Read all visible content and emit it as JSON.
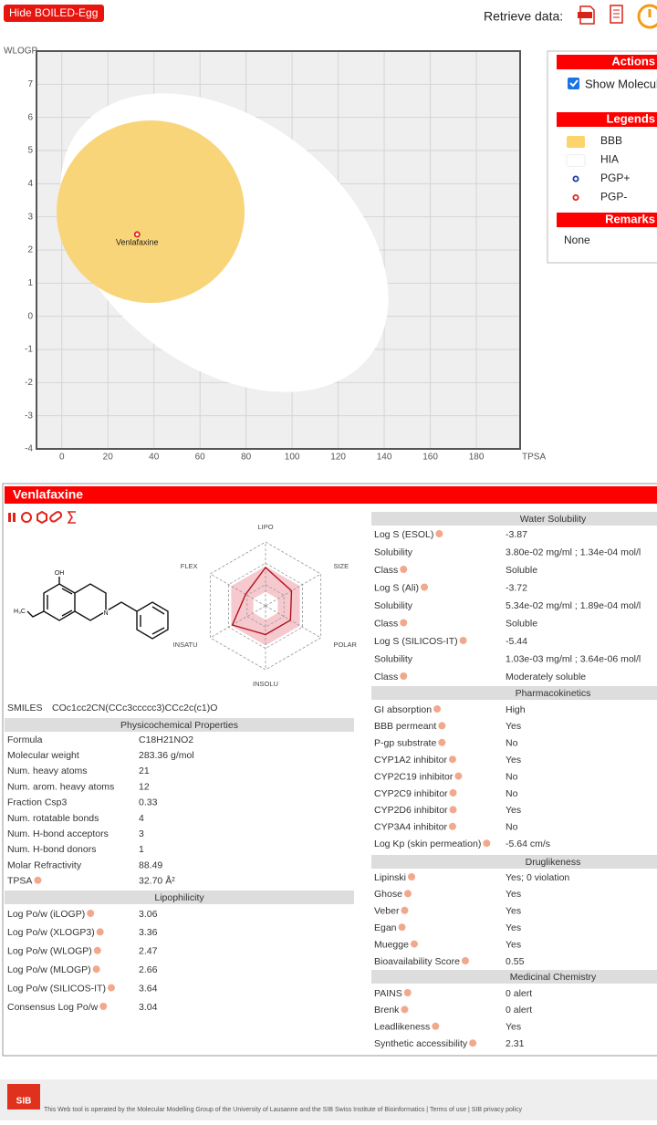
{
  "toolbar": {
    "hide_button": "Hide BOILED-Egg",
    "retrieve_label": "Retrieve data:"
  },
  "chart_data": [
    {
      "type": "scatter",
      "x_label": "TPSA",
      "y_label": "WLOGP",
      "xlim": [
        -11,
        199
      ],
      "ylim": [
        -4,
        8
      ],
      "xticks": [
        0,
        20,
        40,
        60,
        80,
        100,
        120,
        140,
        160,
        180
      ],
      "yticks": [
        -4,
        -3,
        -2,
        -1,
        0,
        1,
        2,
        3,
        4,
        5,
        6,
        7
      ],
      "grid": true,
      "series": [
        {
          "name": "Venlafaxine",
          "color": "#e0221b",
          "x": [
            32.7
          ],
          "values": [
            2.47
          ]
        }
      ]
    },
    {
      "type": "radar",
      "axes": [
        "LIPO",
        "SIZE",
        "POLAR",
        "INSOLU",
        "INSATU",
        "FLEX"
      ],
      "values": [
        0.6,
        0.47,
        0.45,
        0.45,
        0.6,
        0.36
      ],
      "ylim": [
        0,
        1
      ],
      "color": "#b0121b"
    }
  ],
  "side_panel": {
    "actions_title": "Actions",
    "show_names": "Show Molecule names",
    "legends_title": "Legends",
    "legend": [
      {
        "label": "BBB",
        "color": "#fbd46c"
      },
      {
        "label": "HIA",
        "color": "#ffffff"
      },
      {
        "label": "PGP+",
        "color": "#1a3fa0",
        "marker": "ring"
      },
      {
        "label": "PGP-",
        "color": "#e0221b",
        "marker": "ring"
      }
    ],
    "remarks_title": "Remarks",
    "remarks": "None"
  },
  "details": {
    "title": "Venlafaxine",
    "structure_labels": [
      "OH",
      "H₃C",
      "N"
    ],
    "smiles_label": "SMILES",
    "smiles": "COc1cc2CN(CCc3ccccc3)CCc2c(c1)O",
    "left_sections": [
      {
        "title": "Physicochemical Properties",
        "rows": [
          {
            "label": "Formula",
            "value": "C18H21NO2"
          },
          {
            "label": "Molecular weight",
            "value": "283.36 g/mol"
          },
          {
            "label": "Num. heavy atoms",
            "value": "21"
          },
          {
            "label": "Num. arom. heavy atoms",
            "value": "12"
          },
          {
            "label": "Fraction Csp3",
            "value": "0.33"
          },
          {
            "label": "Num. rotatable bonds",
            "value": "4"
          },
          {
            "label": "Num. H-bond acceptors",
            "value": "3"
          },
          {
            "label": "Num. H-bond donors",
            "value": "1"
          },
          {
            "label": "Molar Refractivity",
            "value": "88.49"
          },
          {
            "label": "TPSA",
            "value": "32.70 Å²",
            "help": true
          }
        ]
      },
      {
        "title": "Lipophilicity",
        "rows": [
          {
            "label": "Log Po/w (iLOGP)",
            "value": "3.06",
            "help": true
          },
          {
            "label": "Log Po/w (XLOGP3)",
            "value": "3.36",
            "help": true
          },
          {
            "label": "Log Po/w (WLOGP)",
            "value": "2.47",
            "help": true
          },
          {
            "label": "Log Po/w (MLOGP)",
            "value": "2.66",
            "help": true
          },
          {
            "label": "Log Po/w (SILICOS-IT)",
            "value": "3.64",
            "help": true
          },
          {
            "label": "Consensus Log Po/w",
            "value": "3.04",
            "help": true
          }
        ]
      }
    ],
    "right_sections": [
      {
        "title": "Water Solubility",
        "rows": [
          {
            "label": "Log S (ESOL)",
            "value": "-3.87",
            "help": true
          },
          {
            "label": "Solubility",
            "value": "3.80e-02 mg/ml ; 1.34e-04 mol/l"
          },
          {
            "label": "Class",
            "value": "Soluble",
            "help": true
          },
          {
            "label": "Log S (Ali)",
            "value": "-3.72",
            "help": true
          },
          {
            "label": "Solubility",
            "value": "5.34e-02 mg/ml ; 1.89e-04 mol/l"
          },
          {
            "label": "Class",
            "value": "Soluble",
            "help": true
          },
          {
            "label": "Log S (SILICOS-IT)",
            "value": "-5.44",
            "help": true
          },
          {
            "label": "Solubility",
            "value": "1.03e-03 mg/ml ; 3.64e-06 mol/l"
          },
          {
            "label": "Class",
            "value": "Moderately soluble",
            "help": true
          }
        ]
      },
      {
        "title": "Pharmacokinetics",
        "rows": [
          {
            "label": "GI absorption",
            "value": "High",
            "help": true
          },
          {
            "label": "BBB permeant",
            "value": "Yes",
            "help": true
          },
          {
            "label": "P-gp substrate",
            "value": "No",
            "help": true
          },
          {
            "label": "CYP1A2 inhibitor",
            "value": "Yes",
            "help": true
          },
          {
            "label": "CYP2C19 inhibitor",
            "value": "No",
            "help": true
          },
          {
            "label": "CYP2C9 inhibitor",
            "value": "No",
            "help": true
          },
          {
            "label": "CYP2D6 inhibitor",
            "value": "Yes",
            "help": true
          },
          {
            "label": "CYP3A4 inhibitor",
            "value": "No",
            "help": true
          },
          {
            "label": "Log Kp (skin permeation)",
            "value": "-5.64 cm/s",
            "help": true
          }
        ]
      },
      {
        "title": "Druglikeness",
        "rows": [
          {
            "label": "Lipinski",
            "value": "Yes; 0 violation",
            "help": true
          },
          {
            "label": "Ghose",
            "value": "Yes",
            "help": true
          },
          {
            "label": "Veber",
            "value": "Yes",
            "help": true
          },
          {
            "label": "Egan",
            "value": "Yes",
            "help": true
          },
          {
            "label": "Muegge",
            "value": "Yes",
            "help": true
          },
          {
            "label": "Bioavailability Score",
            "value": "0.55",
            "help": true
          }
        ]
      },
      {
        "title": "Medicinal Chemistry",
        "rows": [
          {
            "label": "PAINS",
            "value": "0 alert",
            "help": true
          },
          {
            "label": "Brenk",
            "value": "0 alert",
            "help": true
          },
          {
            "label": "Leadlikeness",
            "value": "Yes",
            "help": true
          },
          {
            "label": "Synthetic accessibility",
            "value": "2.31",
            "help": true
          }
        ]
      }
    ]
  },
  "footer": {
    "logo": "SIB",
    "text": "This Web tool is operated by the Molecular Modelling Group of the University of Lausanne and the SIB Swiss Institute of Bioinformatics | Terms of use | SIB privacy policy"
  }
}
